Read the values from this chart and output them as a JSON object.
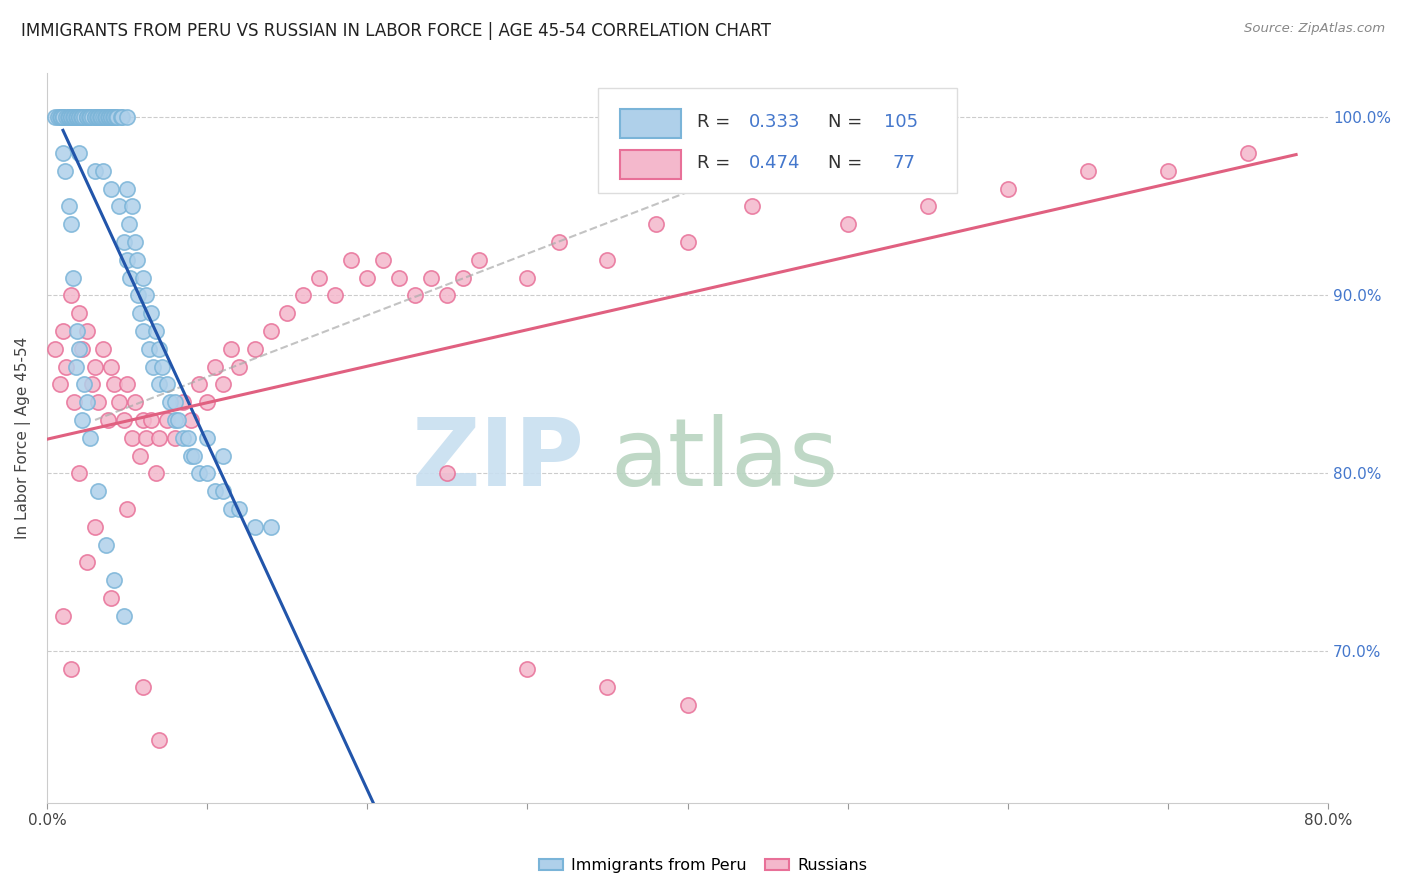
{
  "title": "IMMIGRANTS FROM PERU VS RUSSIAN IN LABOR FORCE | AGE 45-54 CORRELATION CHART",
  "source": "Source: ZipAtlas.com",
  "ylabel": "In Labor Force | Age 45-54",
  "xlim": [
    0.0,
    0.8
  ],
  "ylim": [
    0.615,
    1.025
  ],
  "x_ticks": [
    0.0,
    0.1,
    0.2,
    0.3,
    0.4,
    0.5,
    0.6,
    0.7,
    0.8
  ],
  "x_tick_labels": [
    "0.0%",
    "",
    "",
    "",
    "",
    "",
    "",
    "",
    "80.0%"
  ],
  "y_ticks": [
    0.7,
    0.8,
    0.9,
    1.0
  ],
  "y_tick_labels": [
    "70.0%",
    "80.0%",
    "90.0%",
    "100.0%"
  ],
  "peru_color_edge": "#7ab4d8",
  "peru_color_fill": "#afd0ea",
  "russian_color_edge": "#e87098",
  "russian_color_fill": "#f4b8cc",
  "peru_R": "0.333",
  "peru_N": "105",
  "russian_R": "0.474",
  "russian_N": "77",
  "peru_line_color": "#2255aa",
  "russian_line_color": "#e06080",
  "ref_line_color": "#aaaaaa",
  "watermark_zip_color": "#c8dff0",
  "watermark_atlas_color": "#b8d4c0",
  "peru_x": [
    0.005,
    0.007,
    0.008,
    0.009,
    0.01,
    0.01,
    0.01,
    0.012,
    0.013,
    0.014,
    0.015,
    0.015,
    0.016,
    0.017,
    0.018,
    0.019,
    0.02,
    0.02,
    0.02,
    0.021,
    0.022,
    0.023,
    0.025,
    0.025,
    0.026,
    0.027,
    0.028,
    0.03,
    0.03,
    0.03,
    0.031,
    0.032,
    0.033,
    0.034,
    0.035,
    0.035,
    0.036,
    0.037,
    0.038,
    0.039,
    0.04,
    0.04,
    0.04,
    0.041,
    0.042,
    0.043,
    0.044,
    0.045,
    0.046,
    0.047,
    0.048,
    0.05,
    0.05,
    0.05,
    0.051,
    0.052,
    0.053,
    0.055,
    0.056,
    0.057,
    0.058,
    0.06,
    0.06,
    0.062,
    0.064,
    0.065,
    0.066,
    0.068,
    0.07,
    0.07,
    0.072,
    0.075,
    0.077,
    0.08,
    0.08,
    0.082,
    0.085,
    0.088,
    0.09,
    0.092,
    0.095,
    0.1,
    0.1,
    0.105,
    0.11,
    0.11,
    0.115,
    0.12,
    0.13,
    0.14,
    0.015,
    0.02,
    0.025,
    0.018,
    0.022,
    0.014,
    0.011,
    0.016,
    0.019,
    0.023,
    0.027,
    0.032,
    0.037,
    0.042,
    0.048
  ],
  "peru_y": [
    1.0,
    1.0,
    1.0,
    1.0,
    1.0,
    1.0,
    0.98,
    1.0,
    1.0,
    1.0,
    1.0,
    1.0,
    1.0,
    1.0,
    1.0,
    1.0,
    1.0,
    1.0,
    0.98,
    1.0,
    1.0,
    1.0,
    1.0,
    1.0,
    1.0,
    1.0,
    1.0,
    1.0,
    1.0,
    0.97,
    1.0,
    1.0,
    1.0,
    1.0,
    1.0,
    0.97,
    1.0,
    1.0,
    1.0,
    1.0,
    1.0,
    1.0,
    0.96,
    1.0,
    1.0,
    1.0,
    1.0,
    0.95,
    1.0,
    1.0,
    0.93,
    1.0,
    0.96,
    0.92,
    0.94,
    0.91,
    0.95,
    0.93,
    0.92,
    0.9,
    0.89,
    0.91,
    0.88,
    0.9,
    0.87,
    0.89,
    0.86,
    0.88,
    0.87,
    0.85,
    0.86,
    0.85,
    0.84,
    0.84,
    0.83,
    0.83,
    0.82,
    0.82,
    0.81,
    0.81,
    0.8,
    0.8,
    0.82,
    0.79,
    0.79,
    0.81,
    0.78,
    0.78,
    0.77,
    0.77,
    0.94,
    0.87,
    0.84,
    0.86,
    0.83,
    0.95,
    0.97,
    0.91,
    0.88,
    0.85,
    0.82,
    0.79,
    0.76,
    0.74,
    0.72
  ],
  "russian_x": [
    0.005,
    0.008,
    0.01,
    0.012,
    0.015,
    0.017,
    0.02,
    0.022,
    0.025,
    0.028,
    0.03,
    0.032,
    0.035,
    0.038,
    0.04,
    0.042,
    0.045,
    0.048,
    0.05,
    0.053,
    0.055,
    0.058,
    0.06,
    0.062,
    0.065,
    0.068,
    0.07,
    0.075,
    0.08,
    0.085,
    0.09,
    0.095,
    0.1,
    0.105,
    0.11,
    0.115,
    0.12,
    0.13,
    0.14,
    0.15,
    0.16,
    0.17,
    0.18,
    0.19,
    0.2,
    0.21,
    0.22,
    0.23,
    0.24,
    0.25,
    0.26,
    0.27,
    0.3,
    0.32,
    0.35,
    0.38,
    0.4,
    0.44,
    0.5,
    0.55,
    0.6,
    0.65,
    0.7,
    0.75,
    0.01,
    0.015,
    0.02,
    0.025,
    0.03,
    0.04,
    0.05,
    0.06,
    0.07,
    0.25,
    0.3,
    0.35,
    0.4
  ],
  "russian_y": [
    0.87,
    0.85,
    0.88,
    0.86,
    0.9,
    0.84,
    0.89,
    0.87,
    0.88,
    0.85,
    0.86,
    0.84,
    0.87,
    0.83,
    0.86,
    0.85,
    0.84,
    0.83,
    0.85,
    0.82,
    0.84,
    0.81,
    0.83,
    0.82,
    0.83,
    0.8,
    0.82,
    0.83,
    0.82,
    0.84,
    0.83,
    0.85,
    0.84,
    0.86,
    0.85,
    0.87,
    0.86,
    0.87,
    0.88,
    0.89,
    0.9,
    0.91,
    0.9,
    0.92,
    0.91,
    0.92,
    0.91,
    0.9,
    0.91,
    0.9,
    0.91,
    0.92,
    0.91,
    0.93,
    0.92,
    0.94,
    0.93,
    0.95,
    0.94,
    0.95,
    0.96,
    0.97,
    0.97,
    0.98,
    0.72,
    0.69,
    0.8,
    0.75,
    0.77,
    0.73,
    0.78,
    0.68,
    0.65,
    0.8,
    0.69,
    0.68,
    0.67
  ]
}
